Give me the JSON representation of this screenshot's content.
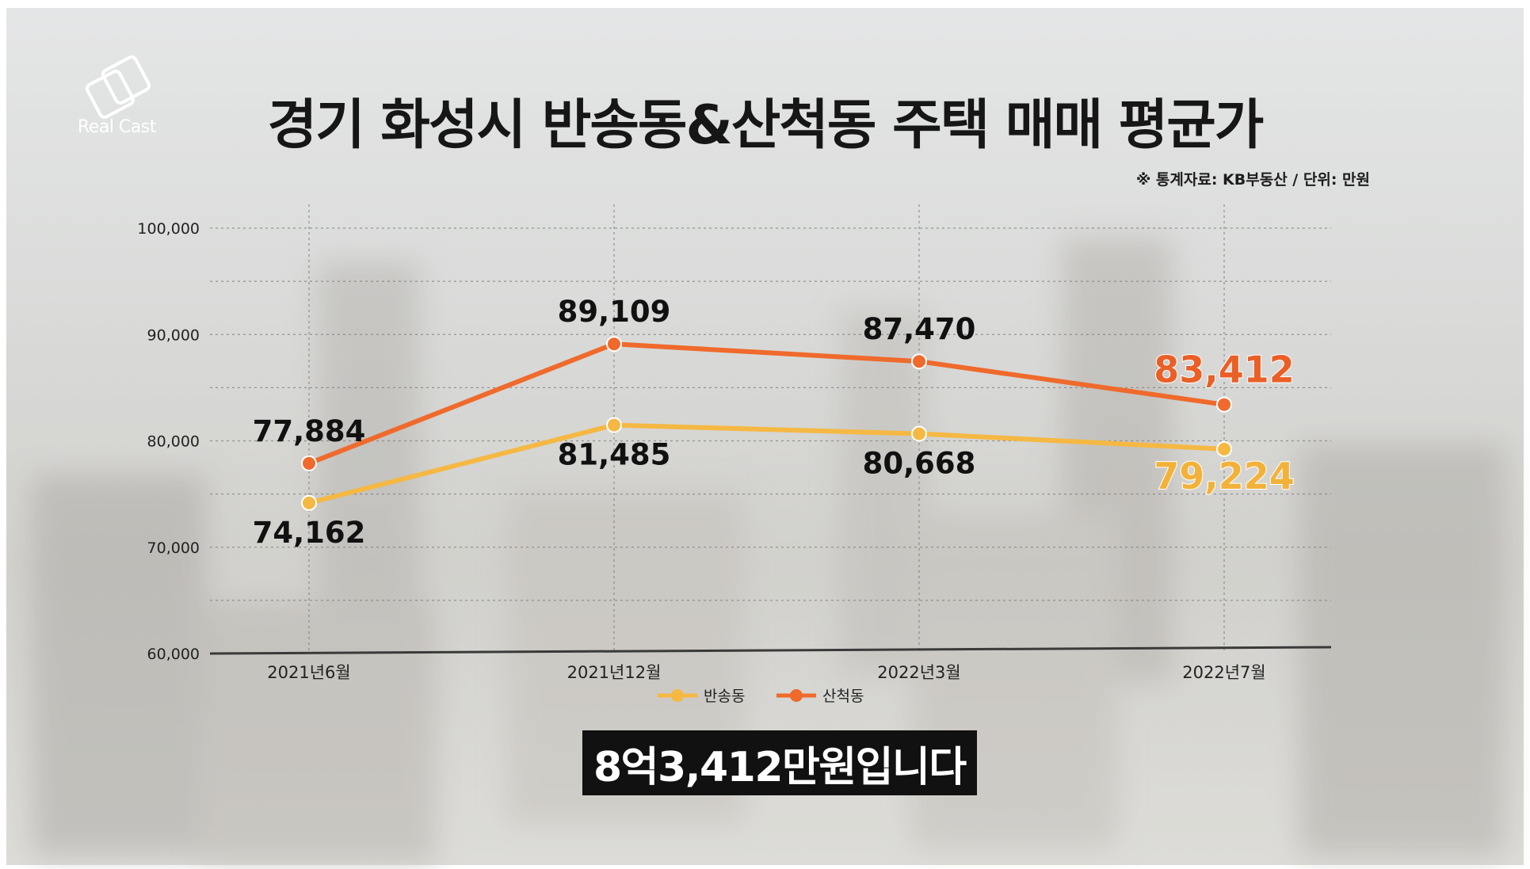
{
  "branding": {
    "logo_text": "Real Cast"
  },
  "title": "경기 화성시 반송동&산척동 주택 매매 평균가",
  "source_note": "※ 통계자료: KB부동산 / 단위: 만원",
  "subtitle": "8억3,412만원입니다",
  "colors": {
    "bansong": "#f5b843",
    "sancheok": "#ef6a2c",
    "bansong_last_label": "#f2b23a",
    "sancheok_last_label": "#ea5f26",
    "label_dark": "#111111",
    "subtitle_bg": "#111111"
  },
  "chart_data": {
    "type": "line",
    "title": "경기 화성시 반송동&산척동 주택 매매 평균가",
    "categories": [
      "2021년6월",
      "2021년12월",
      "2022년3월",
      "2022년7월"
    ],
    "series": [
      {
        "name": "반송동",
        "values": [
          74162,
          81485,
          80668,
          79224
        ],
        "labels": [
          "74,162",
          "81,485",
          "80,668",
          "79,224"
        ]
      },
      {
        "name": "산척동",
        "values": [
          77884,
          89109,
          87470,
          83412
        ],
        "labels": [
          "77,884",
          "89,109",
          "87,470",
          "83,412"
        ]
      }
    ],
    "ylim": [
      60000,
      100000
    ],
    "yticks": [
      60000,
      70000,
      80000,
      90000,
      100000
    ],
    "ytick_labels": [
      "60,000",
      "70,000",
      "80,000",
      "90,000",
      "100,000"
    ],
    "grid": true,
    "legend_position": "bottom-center",
    "xlabel": "",
    "ylabel": ""
  }
}
